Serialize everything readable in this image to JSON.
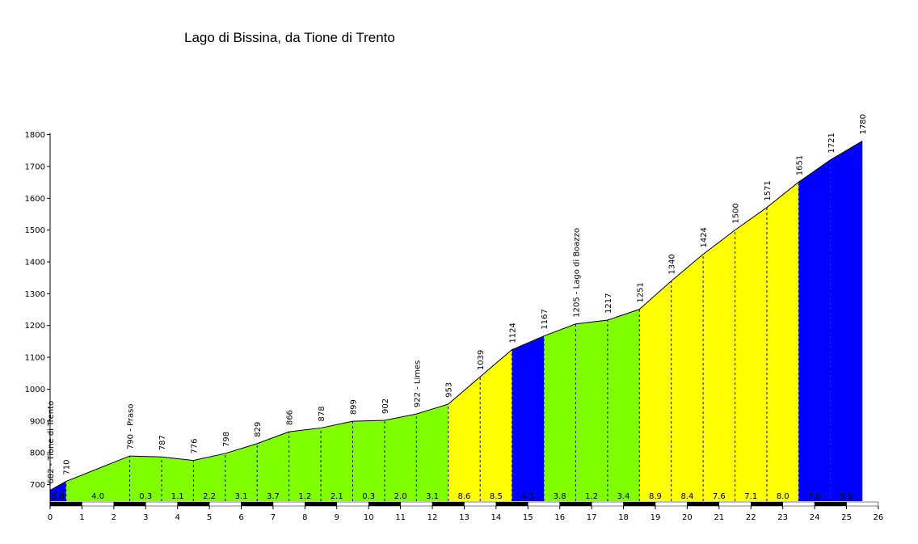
{
  "chart_data": {
    "type": "area",
    "title": "Lago di Bissina, da Tione di Trento",
    "xlabel": "",
    "ylabel": "",
    "xlim": [
      0,
      26
    ],
    "ylim": [
      640,
      1800
    ],
    "grid": false,
    "x_ticks": [
      "0",
      "1",
      "2",
      "3",
      "4",
      "5",
      "6",
      "7",
      "8",
      "9",
      "10",
      "11",
      "12",
      "13",
      "14",
      "15",
      "16",
      "17",
      "18",
      "19",
      "20",
      "21",
      "22",
      "23",
      "24",
      "25",
      "26"
    ],
    "y_ticks": [
      "700",
      "800",
      "900",
      "1000",
      "1100",
      "1200",
      "1300",
      "1400",
      "1500",
      "1600",
      "1700",
      "1800"
    ],
    "colors": {
      "low": "#80ff00",
      "medium": "#ffff00",
      "high": "#0000ff"
    },
    "profile": [
      {
        "x": 0,
        "y": 682,
        "label": "682 - Tione di Trento"
      },
      {
        "x": 0.5,
        "y": 710,
        "label": "710"
      },
      {
        "x": 2.5,
        "y": 790,
        "label": "790 - Praso"
      },
      {
        "x": 3.5,
        "y": 787,
        "label": "787"
      },
      {
        "x": 4.5,
        "y": 776,
        "label": "776"
      },
      {
        "x": 5.5,
        "y": 798,
        "label": "798"
      },
      {
        "x": 6.5,
        "y": 829,
        "label": "829"
      },
      {
        "x": 7.5,
        "y": 866,
        "label": "866"
      },
      {
        "x": 8.5,
        "y": 878,
        "label": "878"
      },
      {
        "x": 9.5,
        "y": 899,
        "label": "899"
      },
      {
        "x": 10.5,
        "y": 902,
        "label": "902"
      },
      {
        "x": 11.5,
        "y": 922,
        "label": "922 - Limes"
      },
      {
        "x": 12.5,
        "y": 953,
        "label": "953"
      },
      {
        "x": 13.5,
        "y": 1039,
        "label": "1039"
      },
      {
        "x": 14.5,
        "y": 1124,
        "label": "1124"
      },
      {
        "x": 15.5,
        "y": 1167,
        "label": "1167"
      },
      {
        "x": 16.5,
        "y": 1205,
        "label": "1205 - Lago di Boazzo"
      },
      {
        "x": 17.5,
        "y": 1217,
        "label": "1217"
      },
      {
        "x": 18.5,
        "y": 1251,
        "label": "1251"
      },
      {
        "x": 19.5,
        "y": 1340,
        "label": "1340"
      },
      {
        "x": 20.5,
        "y": 1424,
        "label": "1424"
      },
      {
        "x": 21.5,
        "y": 1500,
        "label": "1500"
      },
      {
        "x": 22.5,
        "y": 1571,
        "label": "1571"
      },
      {
        "x": 23.5,
        "y": 1651,
        "label": "1651"
      },
      {
        "x": 24.5,
        "y": 1721,
        "label": "1721"
      },
      {
        "x": 25.5,
        "y": 1780,
        "label": "1780"
      }
    ],
    "segments": [
      {
        "from": 0,
        "to": 0.5,
        "gradient": "5.6",
        "color": "high"
      },
      {
        "from": 0.5,
        "to": 2.5,
        "gradient": "4.0",
        "color": "low"
      },
      {
        "from": 2.5,
        "to": 3.5,
        "gradient": "0.3",
        "color": "low"
      },
      {
        "from": 3.5,
        "to": 4.5,
        "gradient": "1.1",
        "color": "low"
      },
      {
        "from": 4.5,
        "to": 5.5,
        "gradient": "2.2",
        "color": "low"
      },
      {
        "from": 5.5,
        "to": 6.5,
        "gradient": "3.1",
        "color": "low"
      },
      {
        "from": 6.5,
        "to": 7.5,
        "gradient": "3.7",
        "color": "low"
      },
      {
        "from": 7.5,
        "to": 8.5,
        "gradient": "1.2",
        "color": "low"
      },
      {
        "from": 8.5,
        "to": 9.5,
        "gradient": "2.1",
        "color": "low"
      },
      {
        "from": 9.5,
        "to": 10.5,
        "gradient": "0.3",
        "color": "low"
      },
      {
        "from": 10.5,
        "to": 11.5,
        "gradient": "2.0",
        "color": "low"
      },
      {
        "from": 11.5,
        "to": 12.5,
        "gradient": "3.1",
        "color": "low"
      },
      {
        "from": 12.5,
        "to": 13.5,
        "gradient": "8.6",
        "color": "medium"
      },
      {
        "from": 13.5,
        "to": 14.5,
        "gradient": "8.5",
        "color": "medium"
      },
      {
        "from": 14.5,
        "to": 15.5,
        "gradient": "4.3",
        "color": "high"
      },
      {
        "from": 15.5,
        "to": 16.5,
        "gradient": "3.8",
        "color": "low"
      },
      {
        "from": 16.5,
        "to": 17.5,
        "gradient": "1.2",
        "color": "low"
      },
      {
        "from": 17.5,
        "to": 18.5,
        "gradient": "3.4",
        "color": "low"
      },
      {
        "from": 18.5,
        "to": 19.5,
        "gradient": "8.9",
        "color": "medium"
      },
      {
        "from": 19.5,
        "to": 20.5,
        "gradient": "8.4",
        "color": "medium"
      },
      {
        "from": 20.5,
        "to": 21.5,
        "gradient": "7.6",
        "color": "medium"
      },
      {
        "from": 21.5,
        "to": 22.5,
        "gradient": "7.1",
        "color": "medium"
      },
      {
        "from": 22.5,
        "to": 23.5,
        "gradient": "8.0",
        "color": "medium"
      },
      {
        "from": 23.5,
        "to": 24.5,
        "gradient": "7.0",
        "color": "high"
      },
      {
        "from": 24.5,
        "to": 25.5,
        "gradient": "5.9",
        "color": "high"
      }
    ]
  }
}
